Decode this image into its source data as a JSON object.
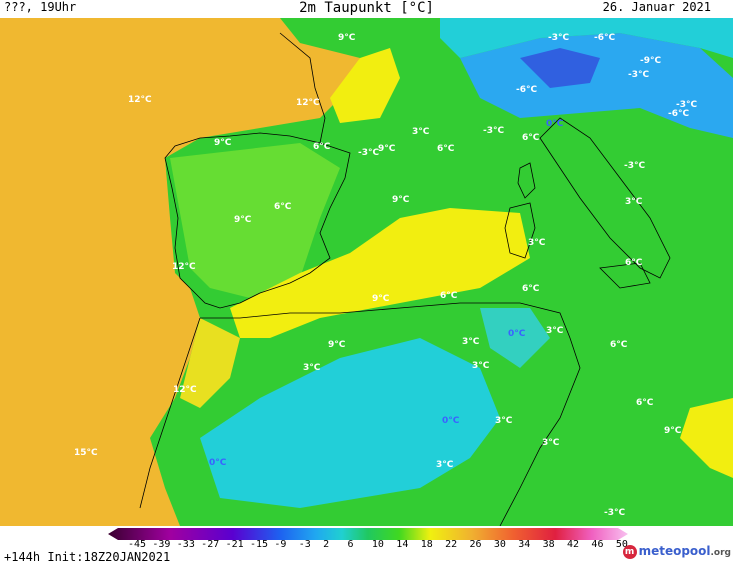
{
  "header": {
    "left": "???, 19Uhr",
    "title": "2m Taupunkt [°C]",
    "date": "26. Januar 2021"
  },
  "footer": {
    "run": "+144h  Init:18Z20JAN2021",
    "scale_values": [
      "-45",
      "-39",
      "-33",
      "-27",
      "-21",
      "-15",
      "-9",
      "-3",
      "2",
      "6",
      "10",
      "14",
      "18",
      "22",
      "26",
      "30",
      "34",
      "38",
      "42",
      "46",
      "50"
    ],
    "brand_name": "meteopool",
    "brand_tld": ".org",
    "brand_logo": "m"
  },
  "colors": {
    "ocean": "#f0b830",
    "land_green": "#33cc33",
    "yellow": "#f2ee10",
    "cyan": "#22cfd8",
    "blue": "#2ba8f0"
  },
  "labels": [
    "9°C",
    "12°C",
    "12°C",
    "9°C",
    "6°C",
    "-3°C",
    "9°C",
    "3°C",
    "-3°C",
    "6°C",
    "9°C",
    "6°C",
    "9°C",
    "9°C",
    "12°C",
    "9°C",
    "6°C",
    "6°C",
    "3°C",
    "3°C",
    "0°C",
    "3°C",
    "6°C",
    "3°C",
    "12°C",
    "0°C",
    "3°C",
    "6°C",
    "15°C",
    "0°C",
    "3°C",
    "9°C",
    "3°C",
    "-3°C",
    "-3°C",
    "-6°C",
    "-9°C",
    "-3°C",
    "-6°C",
    "0°C",
    "-3°C",
    "-6°C",
    "-3°C",
    "3°C",
    "6°C",
    "6°C",
    "3°C"
  ]
}
